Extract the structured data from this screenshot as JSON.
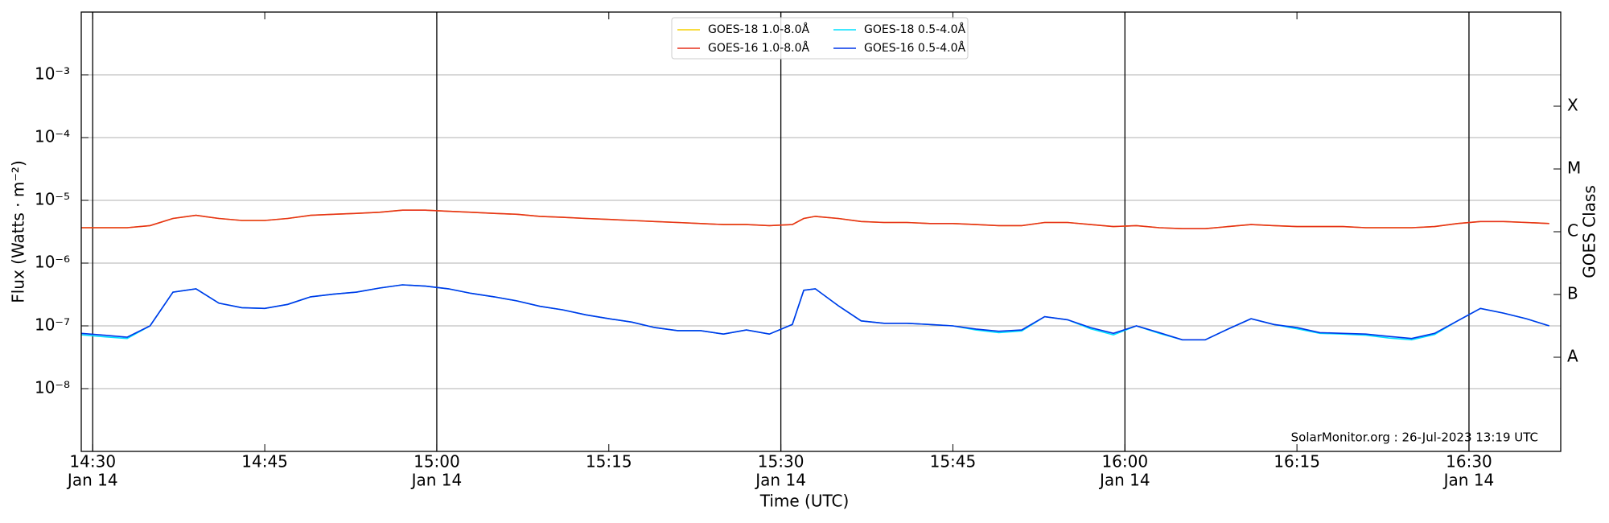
{
  "chart_data": {
    "type": "line",
    "xlabel": "Time (UTC)",
    "ylabel": "Flux (Watts · m⁻²)",
    "y2label": "GOES Class",
    "annotation": "SolarMonitor.org : 26-Jul-2023 13:19 UTC",
    "log_y": true,
    "grid": true,
    "legend": "top",
    "xlim": [
      "14:29",
      "16:38"
    ],
    "xticks": [
      {
        "value": "14:30",
        "label": [
          "14:30",
          "Jan 14"
        ]
      },
      "14:45",
      {
        "value": "15:00",
        "label": [
          "15:00",
          "Jan 14"
        ]
      },
      "15:15",
      {
        "value": "15:30",
        "label": [
          "15:30",
          "Jan 14"
        ]
      },
      "15:45",
      {
        "value": "16:00",
        "label": [
          "16:00",
          "Jan 14"
        ]
      },
      "16:15",
      {
        "value": "16:30",
        "label": [
          "16:30",
          "Jan 14"
        ]
      }
    ],
    "ylim": [
      1e-09,
      0.01
    ],
    "yticks": [
      {
        "value": 0.001,
        "label": "10⁻³"
      },
      {
        "value": 0.0001,
        "label": "10⁻⁴"
      },
      {
        "value": 1e-05,
        "label": "10⁻⁵"
      },
      {
        "value": 1e-06,
        "label": "10⁻⁶"
      },
      {
        "value": 1e-07,
        "label": "10⁻⁷"
      },
      {
        "value": 1e-08,
        "label": "10⁻⁸"
      }
    ],
    "y2ticks": [
      {
        "value": 0.0003162,
        "label": "X"
      },
      {
        "value": 3.162e-05,
        "label": "M"
      },
      {
        "value": 3.162e-06,
        "label": "C"
      },
      {
        "value": 3.162e-07,
        "label": "B"
      },
      {
        "value": 3.162e-08,
        "label": "A"
      }
    ],
    "x": [
      "14:29",
      "14:31",
      "14:33",
      "14:35",
      "14:37",
      "14:39",
      "14:41",
      "14:43",
      "14:45",
      "14:47",
      "14:49",
      "14:51",
      "14:53",
      "14:55",
      "14:57",
      "14:59",
      "15:01",
      "15:03",
      "15:05",
      "15:07",
      "15:09",
      "15:11",
      "15:13",
      "15:15",
      "15:17",
      "15:19",
      "15:21",
      "15:23",
      "15:25",
      "15:27",
      "15:29",
      "15:31",
      "15:32",
      "15:33",
      "15:35",
      "15:37",
      "15:39",
      "15:41",
      "15:43",
      "15:45",
      "15:47",
      "15:49",
      "15:51",
      "15:53",
      "15:55",
      "15:57",
      "15:59",
      "16:01",
      "16:03",
      "16:05",
      "16:07",
      "16:09",
      "16:11",
      "16:13",
      "16:15",
      "16:17",
      "16:19",
      "16:21",
      "16:23",
      "16:25",
      "16:27",
      "16:29",
      "16:31",
      "16:33",
      "16:35",
      "16:37"
    ],
    "series": [
      {
        "name": "GOES-18 1.0-8.0Å",
        "color": "#f5d000",
        "values": [
          3.67e-06,
          3.67e-06,
          3.67e-06,
          3.96e-06,
          5.15e-06,
          5.77e-06,
          5.15e-06,
          4.78e-06,
          4.78e-06,
          5.15e-06,
          5.77e-06,
          6e-06,
          6.2e-06,
          6.46e-06,
          6.97e-06,
          6.97e-06,
          6.7e-06,
          6.46e-06,
          6.2e-06,
          6e-06,
          5.56e-06,
          5.36e-06,
          5.15e-06,
          4.97e-06,
          4.78e-06,
          4.6e-06,
          4.44e-06,
          4.27e-06,
          4.11e-06,
          4.11e-06,
          3.96e-06,
          4.11e-06,
          5.15e-06,
          5.56e-06,
          5.15e-06,
          4.6e-06,
          4.44e-06,
          4.44e-06,
          4.27e-06,
          4.27e-06,
          4.11e-06,
          3.96e-06,
          3.96e-06,
          4.44e-06,
          4.44e-06,
          4.11e-06,
          3.82e-06,
          3.96e-06,
          3.67e-06,
          3.54e-06,
          3.54e-06,
          3.82e-06,
          4.11e-06,
          3.96e-06,
          3.82e-06,
          3.82e-06,
          3.82e-06,
          3.67e-06,
          3.67e-06,
          3.67e-06,
          3.82e-06,
          4.27e-06,
          4.6e-06,
          4.6e-06,
          4.44e-06,
          4.27e-06
        ]
      },
      {
        "name": "GOES-16 1.0-8.0Å",
        "color": "#e6311c",
        "values": [
          3.67e-06,
          3.67e-06,
          3.67e-06,
          3.96e-06,
          5.15e-06,
          5.77e-06,
          5.15e-06,
          4.78e-06,
          4.78e-06,
          5.15e-06,
          5.77e-06,
          6e-06,
          6.2e-06,
          6.46e-06,
          6.97e-06,
          6.97e-06,
          6.7e-06,
          6.46e-06,
          6.2e-06,
          6e-06,
          5.56e-06,
          5.36e-06,
          5.15e-06,
          4.97e-06,
          4.78e-06,
          4.6e-06,
          4.44e-06,
          4.27e-06,
          4.11e-06,
          4.11e-06,
          3.96e-06,
          4.11e-06,
          5.15e-06,
          5.56e-06,
          5.15e-06,
          4.6e-06,
          4.44e-06,
          4.44e-06,
          4.27e-06,
          4.27e-06,
          4.11e-06,
          3.96e-06,
          3.96e-06,
          4.44e-06,
          4.44e-06,
          4.11e-06,
          3.82e-06,
          3.96e-06,
          3.67e-06,
          3.54e-06,
          3.54e-06,
          3.82e-06,
          4.11e-06,
          3.96e-06,
          3.82e-06,
          3.82e-06,
          3.82e-06,
          3.67e-06,
          3.67e-06,
          3.67e-06,
          3.82e-06,
          4.27e-06,
          4.6e-06,
          4.6e-06,
          4.44e-06,
          4.27e-06
        ]
      },
      {
        "name": "GOES-18 0.5-4.0Å",
        "color": "#00e0ff",
        "values": [
          7.2e-08,
          6.7e-08,
          6.3e-08,
          1e-07,
          3.45e-07,
          3.9e-07,
          2.3e-07,
          1.95e-07,
          1.9e-07,
          2.2e-07,
          2.9e-07,
          3.2e-07,
          3.45e-07,
          4e-07,
          4.5e-07,
          4.3e-07,
          3.9e-07,
          3.3e-07,
          2.9e-07,
          2.5e-07,
          2.05e-07,
          1.8e-07,
          1.5e-07,
          1.3e-07,
          1.15e-07,
          9.4e-08,
          8.4e-08,
          8.4e-08,
          7.4e-08,
          8.6e-08,
          7.4e-08,
          1.05e-07,
          3.7e-07,
          3.9e-07,
          2.1e-07,
          1.2e-07,
          1.1e-07,
          1.1e-07,
          1.05e-07,
          1e-07,
          8.6e-08,
          7.8e-08,
          8.3e-08,
          1.4e-07,
          1.25e-07,
          9e-08,
          7.2e-08,
          1e-07,
          7.6e-08,
          6e-08,
          6e-08,
          8.9e-08,
          1.3e-07,
          1.05e-07,
          9e-08,
          7.6e-08,
          7.4e-08,
          7.1e-08,
          6.4e-08,
          6e-08,
          7.3e-08,
          1.2e-07,
          1.9e-07,
          1.6e-07,
          1.3e-07,
          1e-07
        ]
      },
      {
        "name": "GOES-16 0.5-4.0Å",
        "color": "#0036e8",
        "values": [
          7.6e-08,
          7.1e-08,
          6.6e-08,
          1e-07,
          3.45e-07,
          3.9e-07,
          2.3e-07,
          1.95e-07,
          1.9e-07,
          2.2e-07,
          2.9e-07,
          3.2e-07,
          3.45e-07,
          4e-07,
          4.5e-07,
          4.3e-07,
          3.9e-07,
          3.3e-07,
          2.9e-07,
          2.5e-07,
          2.05e-07,
          1.8e-07,
          1.5e-07,
          1.3e-07,
          1.15e-07,
          9.4e-08,
          8.4e-08,
          8.4e-08,
          7.4e-08,
          8.6e-08,
          7.4e-08,
          1.05e-07,
          3.7e-07,
          3.9e-07,
          2.1e-07,
          1.2e-07,
          1.1e-07,
          1.1e-07,
          1.05e-07,
          1e-07,
          8.9e-08,
          8.2e-08,
          8.6e-08,
          1.4e-07,
          1.25e-07,
          9.4e-08,
          7.6e-08,
          1e-07,
          7.8e-08,
          6e-08,
          6e-08,
          8.9e-08,
          1.3e-07,
          1.05e-07,
          9.4e-08,
          7.8e-08,
          7.6e-08,
          7.4e-08,
          6.8e-08,
          6.3e-08,
          7.6e-08,
          1.2e-07,
          1.9e-07,
          1.6e-07,
          1.3e-07,
          1e-07
        ]
      }
    ]
  }
}
